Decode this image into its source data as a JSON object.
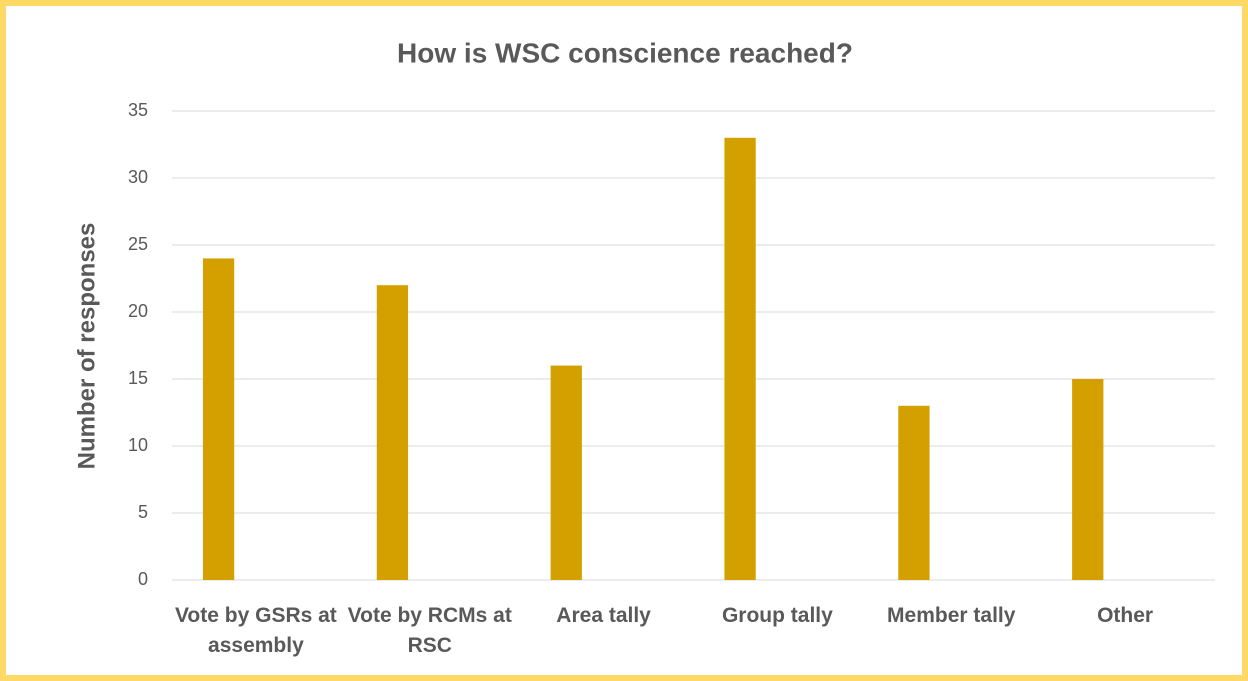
{
  "chart_data": {
    "type": "bar",
    "title": "How is WSC conscience reached?",
    "y_label": "Number of responses",
    "categories": [
      "Vote by GSRs at assembly",
      "Vote by RCMs at RSC",
      "Area tally",
      "Group tally",
      "Member tally",
      "Other"
    ],
    "values": [
      24,
      22,
      16,
      33,
      13,
      15
    ],
    "color": "#d4a000",
    "ylim": [
      0,
      35
    ],
    "yticks": [
      0,
      5,
      10,
      15,
      20,
      25,
      30,
      35
    ],
    "grid": true
  }
}
